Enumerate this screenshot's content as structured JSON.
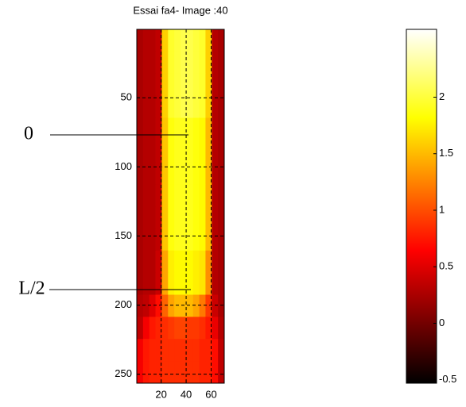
{
  "chart_data": {
    "type": "heatmap",
    "title": "Essai fa4- Image :40",
    "xlim": [
      0.5,
      70.5
    ],
    "xticks": [
      20,
      40,
      60
    ],
    "ylim": [
      0.5,
      256.5
    ],
    "yticks": [
      50,
      100,
      150,
      200,
      250
    ],
    "y_reversed": true,
    "grid": true,
    "colormap": "hot",
    "clim": [
      -0.53,
      2.6
    ],
    "colorbar_ticks": [
      -0.5,
      0,
      0.5,
      1,
      1.5,
      2
    ],
    "annotations": [
      "0",
      "L/2"
    ],
    "values": [
      [
        0.25,
        0.3,
        0.3,
        0.35,
        1.6,
        1.95,
        2.0,
        2.05,
        2.05,
        2.0,
        1.95,
        1.6,
        0.3,
        0.25
      ],
      [
        0.25,
        0.3,
        0.3,
        0.35,
        1.6,
        1.95,
        2.0,
        2.05,
        2.05,
        2.0,
        1.95,
        1.6,
        0.3,
        0.25
      ],
      [
        0.25,
        0.3,
        0.3,
        0.35,
        1.6,
        1.95,
        2.0,
        2.05,
        2.05,
        2.0,
        1.95,
        1.6,
        0.3,
        0.25
      ],
      [
        0.25,
        0.3,
        0.3,
        0.35,
        1.6,
        1.95,
        2.0,
        2.05,
        2.05,
        2.0,
        1.95,
        1.6,
        0.3,
        0.25
      ],
      [
        0.25,
        0.3,
        0.3,
        0.35,
        1.55,
        1.85,
        1.9,
        1.9,
        1.9,
        1.85,
        1.8,
        1.5,
        0.3,
        0.25
      ],
      [
        0.25,
        0.3,
        0.3,
        0.35,
        1.55,
        1.85,
        1.9,
        1.9,
        1.9,
        1.85,
        1.8,
        1.5,
        0.3,
        0.25
      ],
      [
        0.25,
        0.3,
        0.3,
        0.35,
        1.55,
        1.85,
        1.9,
        1.9,
        1.9,
        1.85,
        1.8,
        1.5,
        0.3,
        0.25
      ],
      [
        0.25,
        0.3,
        0.3,
        0.35,
        1.55,
        1.85,
        1.9,
        1.9,
        1.9,
        1.85,
        1.8,
        1.5,
        0.3,
        0.25
      ],
      [
        0.25,
        0.3,
        0.3,
        0.35,
        1.55,
        1.85,
        1.9,
        1.9,
        1.9,
        1.85,
        1.8,
        1.5,
        0.3,
        0.25
      ],
      [
        0.25,
        0.3,
        0.3,
        0.35,
        1.55,
        1.85,
        1.9,
        1.9,
        1.9,
        1.85,
        1.8,
        1.5,
        0.3,
        0.25
      ],
      [
        0.25,
        0.3,
        0.3,
        0.4,
        1.4,
        1.75,
        1.8,
        1.8,
        1.8,
        1.75,
        1.7,
        1.3,
        0.3,
        0.25
      ],
      [
        0.25,
        0.3,
        0.3,
        0.4,
        1.4,
        1.75,
        1.8,
        1.8,
        1.8,
        1.75,
        1.7,
        1.3,
        0.3,
        0.25
      ],
      [
        0.3,
        0.35,
        0.5,
        0.7,
        1.1,
        1.4,
        1.5,
        1.5,
        1.5,
        1.4,
        1.2,
        0.9,
        0.4,
        0.25
      ],
      [
        0.35,
        0.6,
        0.75,
        0.8,
        0.85,
        0.9,
        0.95,
        0.95,
        0.9,
        0.9,
        0.85,
        0.75,
        0.55,
        0.3
      ],
      [
        0.6,
        0.75,
        0.8,
        0.8,
        0.85,
        0.85,
        0.85,
        0.85,
        0.85,
        0.85,
        0.8,
        0.8,
        0.7,
        0.35
      ],
      [
        0.6,
        0.75,
        0.8,
        0.8,
        0.85,
        0.85,
        0.85,
        0.85,
        0.85,
        0.85,
        0.8,
        0.8,
        0.7,
        0.35
      ]
    ]
  }
}
